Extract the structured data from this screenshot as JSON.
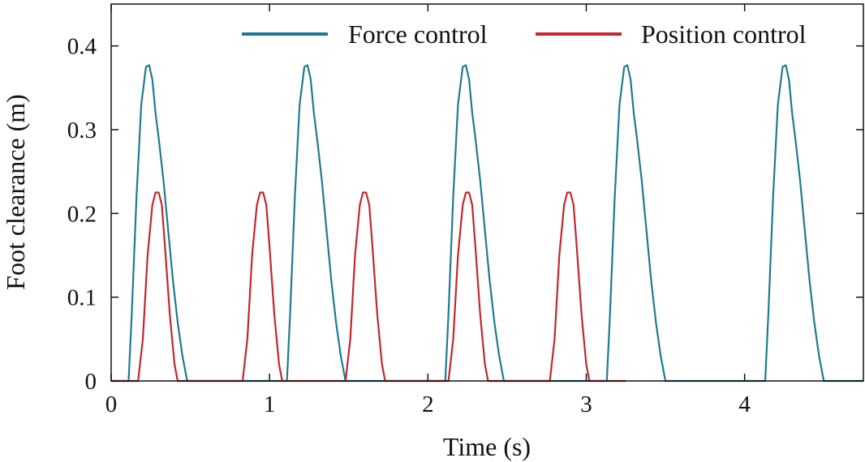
{
  "chart_data": {
    "type": "line",
    "xlabel": "Time (s)",
    "ylabel": "Foot clearance (m)",
    "xlim": [
      0,
      4.75
    ],
    "ylim": [
      0,
      0.45
    ],
    "x_ticks": [
      0,
      1,
      2,
      3,
      4
    ],
    "y_ticks": [
      0,
      0.1,
      0.2,
      0.3,
      0.4
    ],
    "x_tick_labels": [
      "0",
      "1",
      "2",
      "3",
      "4"
    ],
    "y_tick_labels": [
      "0",
      "0.1",
      "0.2",
      "0.3",
      "0.4"
    ],
    "grid": false,
    "legend_position": "top",
    "series": [
      {
        "name": "Force control",
        "color": "#1f7a93",
        "x": [
          0.0,
          0.11,
          0.13,
          0.16,
          0.19,
          0.22,
          0.24,
          0.26,
          0.28,
          0.3,
          0.33,
          0.36,
          0.39,
          0.42,
          0.45,
          0.47,
          0.48,
          1.1,
          1.11,
          1.13,
          1.16,
          1.19,
          1.22,
          1.24,
          1.26,
          1.28,
          1.3,
          1.33,
          1.36,
          1.39,
          1.42,
          1.45,
          1.47,
          1.48,
          2.1,
          2.11,
          2.13,
          2.16,
          2.19,
          2.22,
          2.24,
          2.26,
          2.28,
          2.3,
          2.33,
          2.36,
          2.39,
          2.42,
          2.45,
          2.47,
          2.48,
          3.12,
          3.13,
          3.15,
          3.18,
          3.21,
          3.24,
          3.26,
          3.28,
          3.3,
          3.32,
          3.35,
          3.38,
          3.41,
          3.44,
          3.47,
          3.49,
          3.5,
          4.12,
          4.13,
          4.15,
          4.18,
          4.21,
          4.24,
          4.26,
          4.28,
          4.3,
          4.32,
          4.35,
          4.38,
          4.41,
          4.44,
          4.47,
          4.49,
          4.5,
          4.75
        ],
        "y": [
          0,
          0,
          0.08,
          0.22,
          0.33,
          0.375,
          0.377,
          0.36,
          0.32,
          0.29,
          0.24,
          0.18,
          0.12,
          0.07,
          0.03,
          0.01,
          0,
          0,
          0,
          0.08,
          0.22,
          0.33,
          0.375,
          0.377,
          0.36,
          0.32,
          0.29,
          0.24,
          0.18,
          0.12,
          0.07,
          0.03,
          0.01,
          0,
          0,
          0,
          0.08,
          0.22,
          0.33,
          0.375,
          0.377,
          0.36,
          0.32,
          0.29,
          0.24,
          0.18,
          0.12,
          0.07,
          0.03,
          0.01,
          0,
          0,
          0,
          0.08,
          0.22,
          0.33,
          0.375,
          0.377,
          0.36,
          0.32,
          0.29,
          0.24,
          0.18,
          0.12,
          0.07,
          0.03,
          0.01,
          0,
          0,
          0,
          0.08,
          0.22,
          0.33,
          0.375,
          0.377,
          0.36,
          0.32,
          0.29,
          0.24,
          0.18,
          0.12,
          0.07,
          0.03,
          0.01,
          0,
          0
        ]
      },
      {
        "name": "Position control",
        "color": "#c0282d",
        "x": [
          0.0,
          0.17,
          0.2,
          0.23,
          0.26,
          0.28,
          0.3,
          0.32,
          0.34,
          0.37,
          0.4,
          0.42,
          0.83,
          0.86,
          0.89,
          0.92,
          0.94,
          0.96,
          0.98,
          1.0,
          1.03,
          1.06,
          1.08,
          1.48,
          1.51,
          1.54,
          1.57,
          1.59,
          1.61,
          1.63,
          1.65,
          1.68,
          1.71,
          1.73,
          2.13,
          2.16,
          2.19,
          2.22,
          2.24,
          2.26,
          2.28,
          2.3,
          2.33,
          2.36,
          2.38,
          2.77,
          2.8,
          2.83,
          2.86,
          2.88,
          2.9,
          2.92,
          2.94,
          2.97,
          3.0,
          3.02,
          3.25
        ],
        "y": [
          0,
          0,
          0.05,
          0.15,
          0.21,
          0.225,
          0.225,
          0.21,
          0.16,
          0.08,
          0.02,
          0,
          0,
          0.05,
          0.15,
          0.21,
          0.225,
          0.225,
          0.21,
          0.16,
          0.08,
          0.02,
          0,
          0,
          0.05,
          0.15,
          0.21,
          0.225,
          0.225,
          0.21,
          0.16,
          0.08,
          0.02,
          0,
          0,
          0.05,
          0.15,
          0.21,
          0.225,
          0.225,
          0.21,
          0.16,
          0.08,
          0.02,
          0,
          0,
          0.05,
          0.15,
          0.21,
          0.225,
          0.225,
          0.21,
          0.16,
          0.08,
          0.02,
          0,
          0
        ]
      }
    ]
  }
}
